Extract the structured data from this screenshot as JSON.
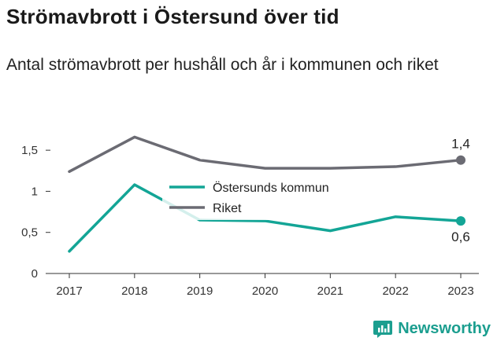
{
  "chart_data": {
    "type": "line",
    "title": "Strömavbrott i Östersund över tid",
    "subtitle": "Antal strömavbrott per hushåll och år i kommunen och riket",
    "categories": [
      "2017",
      "2018",
      "2019",
      "2020",
      "2021",
      "2022",
      "2023"
    ],
    "y_ticks": [
      "0",
      "0,5",
      "1",
      "1,5"
    ],
    "ylim": [
      0,
      1.75
    ],
    "grid": false,
    "legend_position": "center",
    "series": [
      {
        "name": "Östersunds kommun",
        "color": "#13a596",
        "values": [
          0.27,
          1.08,
          0.65,
          0.64,
          0.52,
          0.69,
          0.64
        ],
        "end_label": "0,6"
      },
      {
        "name": "Riket",
        "color": "#6b6b73",
        "values": [
          1.24,
          1.66,
          1.38,
          1.28,
          1.28,
          1.3,
          1.38
        ],
        "end_label": "1,4"
      }
    ]
  },
  "brand": {
    "name": "Newsworthy",
    "icon": "newsworthy-logo-icon"
  }
}
